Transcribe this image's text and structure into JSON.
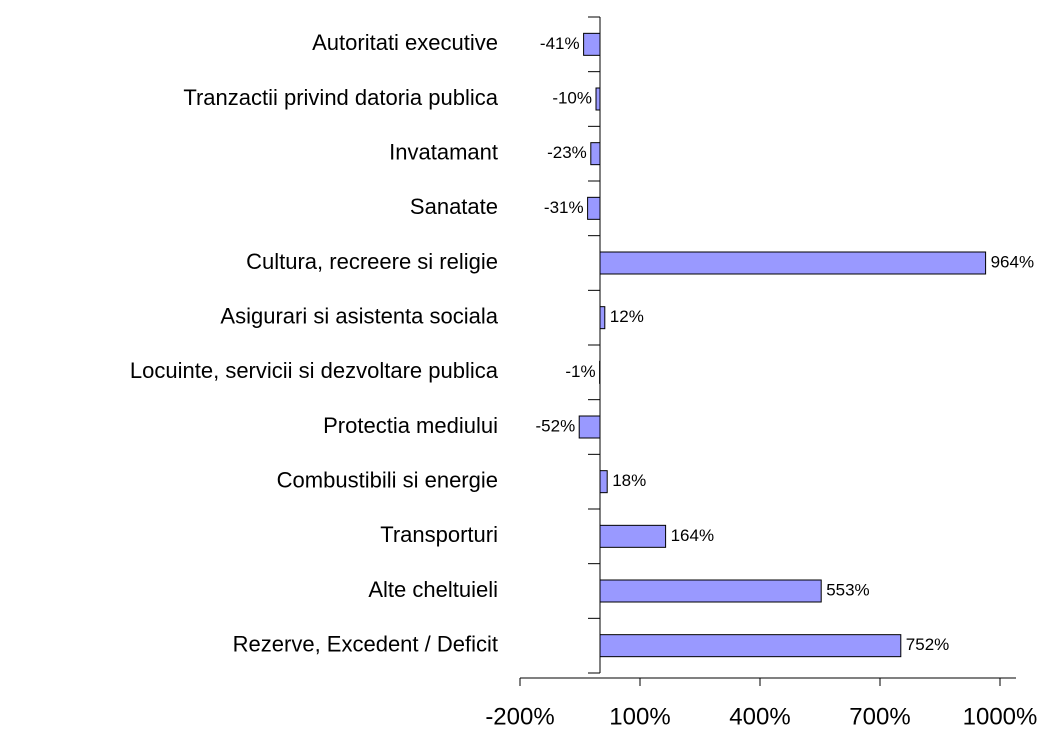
{
  "chart_data": {
    "type": "barh",
    "categories": [
      "Autoritati executive",
      "Tranzactii privind datoria publica",
      "Invatamant",
      "Sanatate",
      "Cultura, recreere si religie",
      "Asigurari si asistenta sociala",
      "Locuinte, servicii si dezvoltare publica",
      "Protectia mediului",
      "Combustibili si energie",
      "Transporturi",
      "Alte cheltuieli",
      "Rezerve, Excedent / Deficit"
    ],
    "values": [
      -41,
      -10,
      -23,
      -31,
      964,
      12,
      -1,
      -52,
      18,
      164,
      553,
      752
    ],
    "value_labels": [
      "-41%",
      "-10%",
      "-23%",
      "-31%",
      "964%",
      "12%",
      "-1%",
      "-52%",
      "18%",
      "164%",
      "553%",
      "752%"
    ],
    "color": "#9999ff",
    "xlim": [
      -200,
      1040
    ],
    "xticks": [
      {
        "value": -200,
        "label": "-200%"
      },
      {
        "value": 100,
        "label": "100%"
      },
      {
        "value": 400,
        "label": "400%"
      },
      {
        "value": 700,
        "label": "700%"
      },
      {
        "value": 1000,
        "label": "1000%"
      }
    ]
  }
}
